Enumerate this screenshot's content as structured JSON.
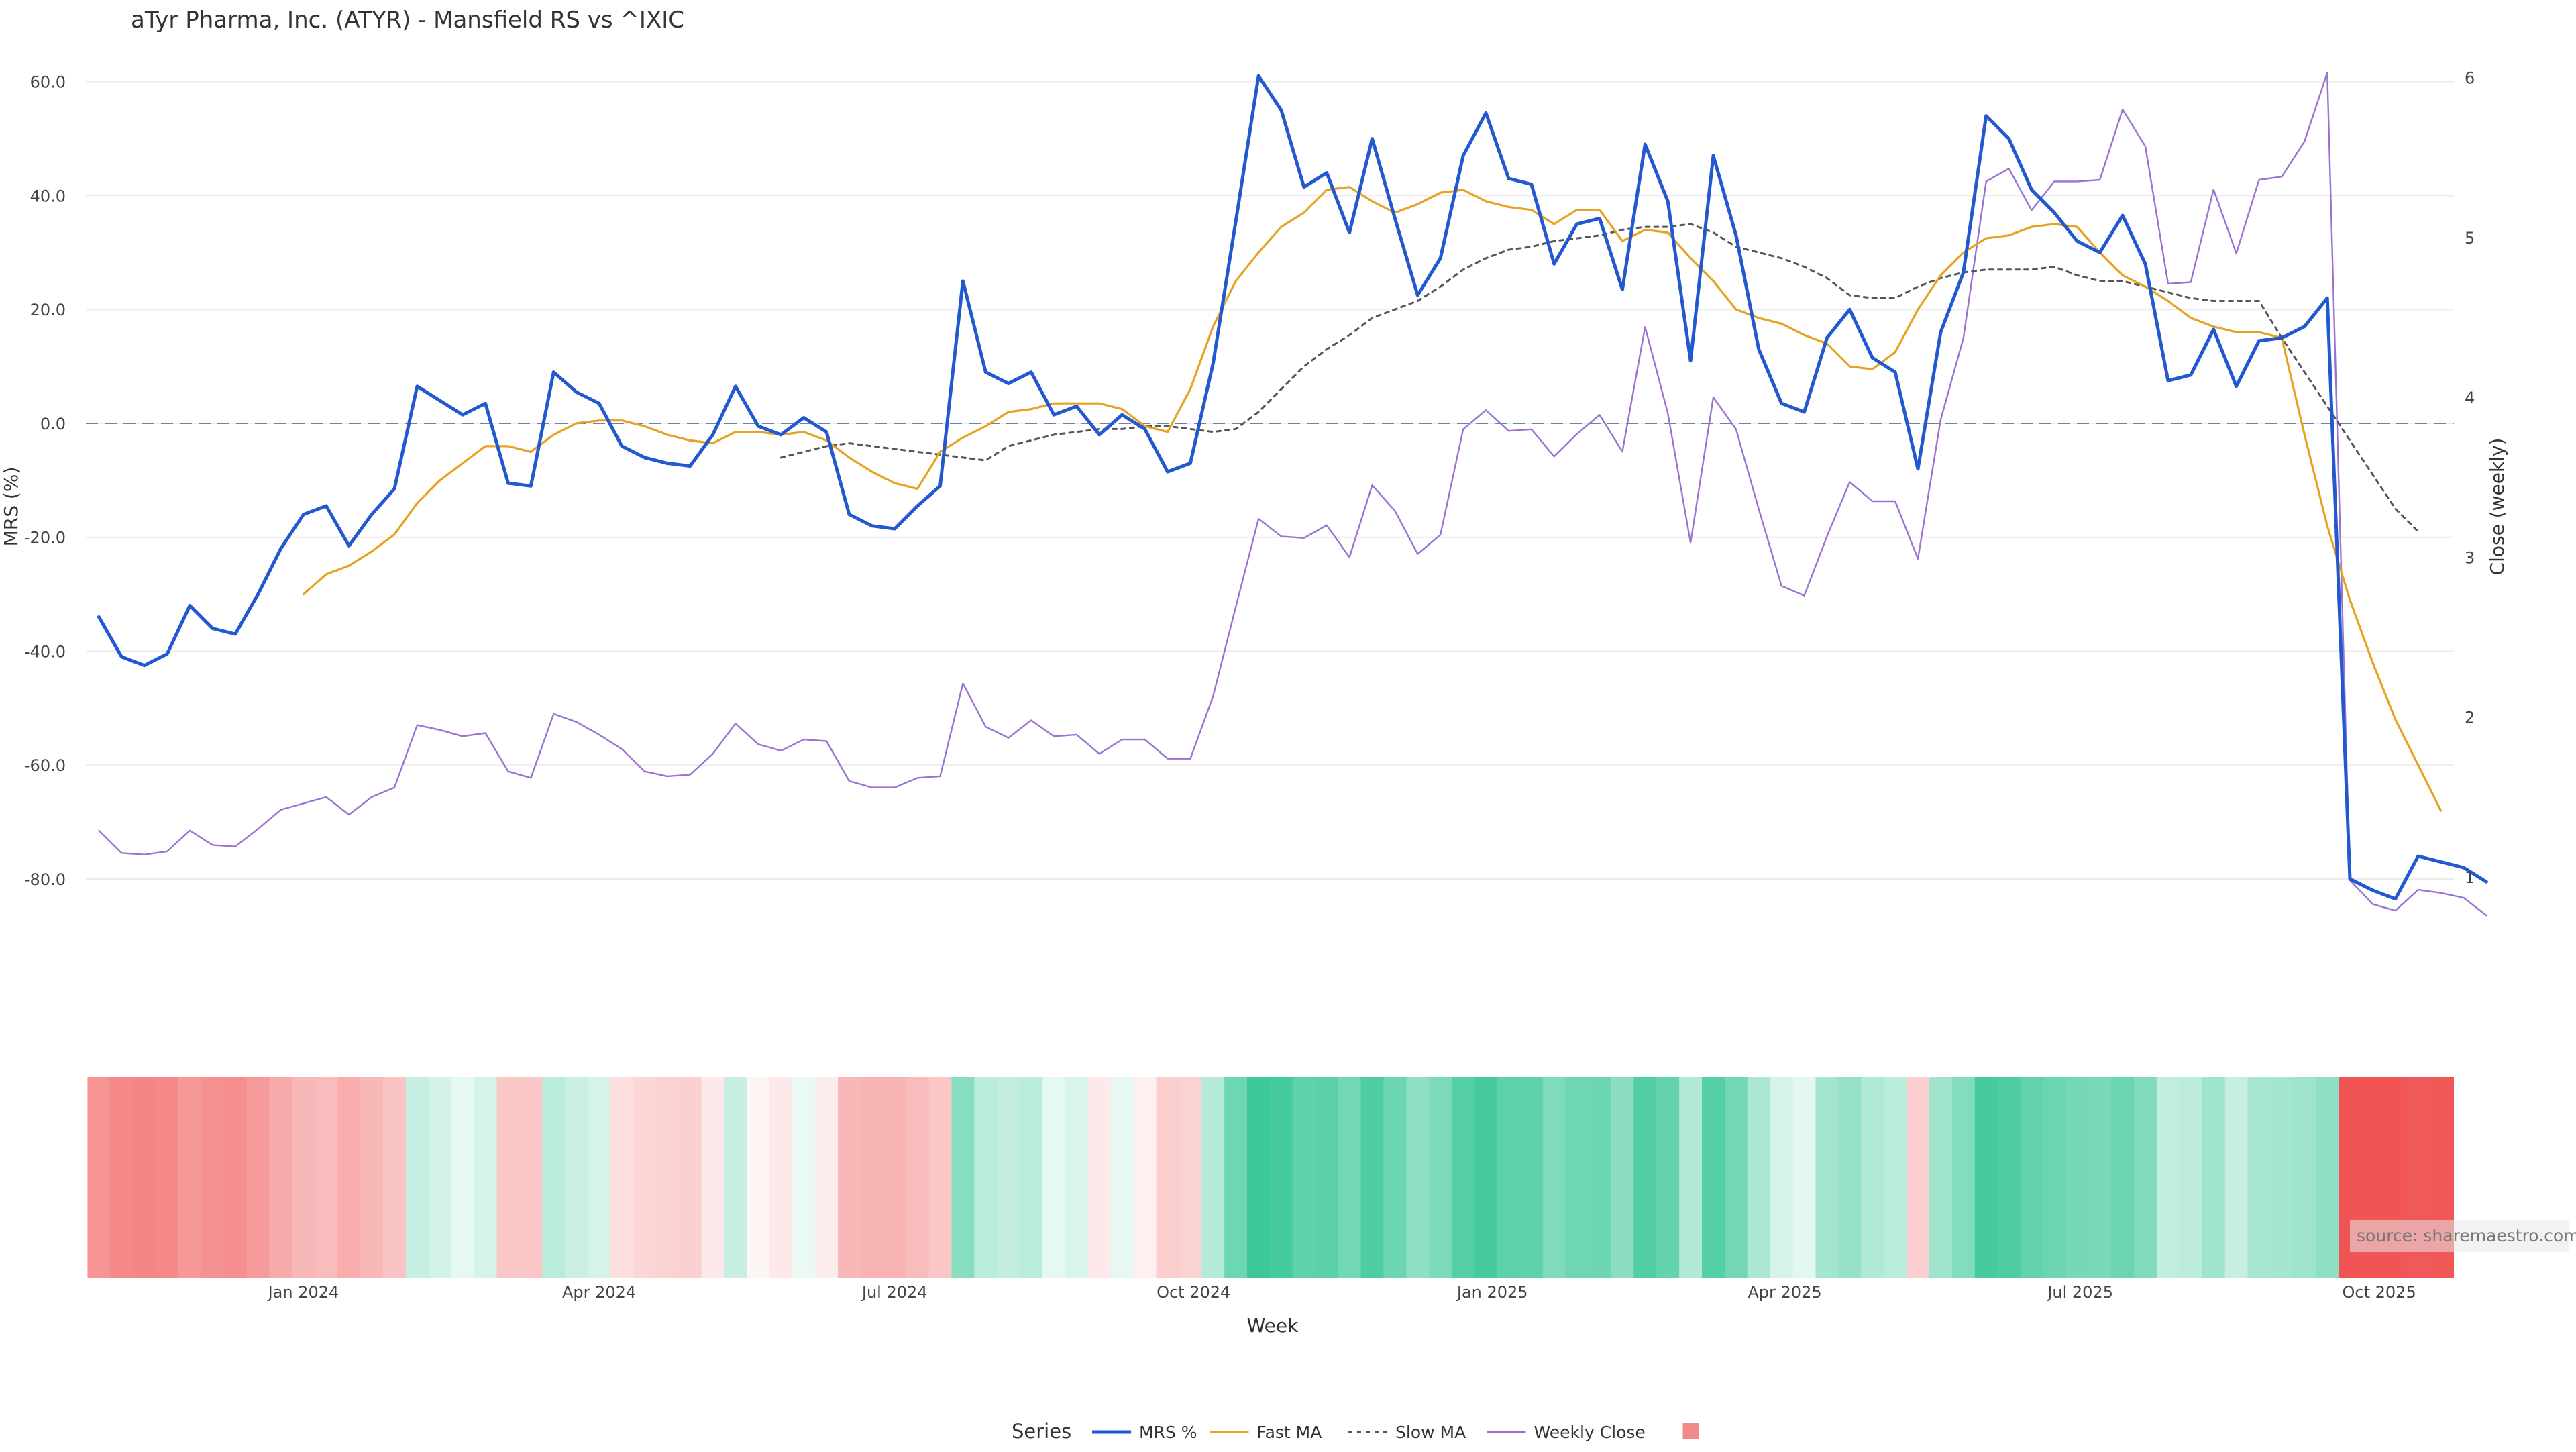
{
  "chart_data": {
    "type": "line",
    "title": "aTyr Pharma, Inc. (ATYR) - Mansfield RS vs ^IXIC",
    "xlabel": "Week",
    "ylabel_left": "MRS (%)",
    "ylabel_right": "Close (weekly)",
    "x_start": "2023-10-30",
    "x_end": "2025-10-20",
    "xlim": [
      "2023-10-26",
      "2025-10-24"
    ],
    "x_ticks": [
      {
        "date": "2024-01-01",
        "label": "Jan 2024"
      },
      {
        "date": "2024-04-01",
        "label": "Apr 2024"
      },
      {
        "date": "2024-07-01",
        "label": "Jul 2024"
      },
      {
        "date": "2024-10-01",
        "label": "Oct 2024"
      },
      {
        "date": "2025-01-01",
        "label": "Jan 2025"
      },
      {
        "date": "2025-04-01",
        "label": "Apr 2025"
      },
      {
        "date": "2025-07-01",
        "label": "Jul 2025"
      },
      {
        "date": "2025-10-01",
        "label": "Oct 2025"
      }
    ],
    "ylim_left": [
      -96.5,
      65.5
    ],
    "yticks_left": [
      "60.0",
      "40.0",
      "20.0",
      "0.0",
      "-20.0",
      "-40.0",
      "-60.0",
      "-80.0"
    ],
    "ylim_right": [
      0.4,
      6.17
    ],
    "yticks_right": [
      "6",
      "5",
      "4",
      "3",
      "2",
      "1"
    ],
    "zero_line": 0,
    "grid": "horizontal",
    "source": "source: sharemaestro.com",
    "legend": {
      "title": "Series",
      "position": "bottom-center",
      "items": [
        {
          "label": "MRS %",
          "color": "#2359d0",
          "style": "solid-thick"
        },
        {
          "label": "Fast MA",
          "color": "#e6a321",
          "style": "solid"
        },
        {
          "label": "Slow MA",
          "color": "#555555",
          "style": "dotted"
        },
        {
          "label": "Weekly Close",
          "color": "#9b72d2",
          "style": "solid-thin"
        },
        {
          "label": "",
          "color": "#f08a8a",
          "style": "swatch"
        }
      ]
    },
    "series": [
      {
        "name": "MRS %",
        "axis": "left",
        "color": "#2359d0",
        "values": [
          -34,
          -41,
          -42.5,
          -40.5,
          -32,
          -36,
          -37,
          -30,
          -22,
          -16,
          -14.5,
          -21.5,
          -16,
          -11.5,
          6.5,
          4,
          1.5,
          3.5,
          -10.5,
          -11,
          9,
          5.5,
          3.5,
          -4,
          -6,
          -7,
          -7.5,
          -2,
          6.5,
          -0.5,
          -2,
          1,
          -1.5,
          -16,
          -18,
          -18.5,
          -14.5,
          -11,
          25,
          9,
          7,
          9,
          1.5,
          3,
          -2,
          1.5,
          -1,
          -8.5,
          -7,
          10.5,
          35.5,
          61,
          55,
          41.5,
          44,
          33.5,
          50,
          36,
          22.5,
          29,
          47,
          54.5,
          43,
          42,
          28,
          35,
          36,
          23.5,
          49,
          39,
          11,
          47,
          33,
          13,
          3.5,
          2,
          15,
          20,
          11.5,
          9,
          -8,
          16,
          26.5,
          54,
          50,
          41,
          37,
          32,
          30,
          36.5,
          28,
          7.5,
          8.5,
          16.5,
          6.5,
          14.5,
          15,
          17,
          22,
          -80,
          -82,
          -83.5,
          -76,
          -77,
          -78,
          -80.5
        ]
      },
      {
        "name": "Fast MA",
        "axis": "left",
        "color": "#e6a321",
        "start_index": 9,
        "values": [
          -30,
          -26.5,
          -25,
          -22.5,
          -19.5,
          -14,
          -10,
          -7,
          -4,
          -4,
          -5,
          -2,
          0,
          0.5,
          0.5,
          -0.5,
          -2,
          -3,
          -3.5,
          -1.5,
          -1.5,
          -2,
          -1.5,
          -3,
          -6,
          -8.5,
          -10.5,
          -11.5,
          -5,
          -2.5,
          -0.5,
          2,
          2.5,
          3.5,
          3.5,
          3.5,
          2.5,
          -0.5,
          -1.5,
          6,
          17,
          25,
          30,
          34.5,
          37,
          41,
          41.5,
          39,
          37,
          38.5,
          40.5,
          41,
          39,
          38,
          37.5,
          35,
          37.5,
          37.5,
          32,
          34,
          33.5,
          29,
          25,
          20,
          18.5,
          17.5,
          15.5,
          14,
          10,
          9.5,
          12.5,
          20,
          26,
          30,
          32.5,
          33,
          34.5,
          35,
          34.5,
          30,
          26,
          24,
          21.5,
          18.5,
          17,
          16,
          16,
          15,
          -2,
          -18,
          -31,
          -42,
          -52,
          -60,
          -68
        ]
      },
      {
        "name": "Slow MA",
        "axis": "left",
        "color": "#555555",
        "start_index": 30,
        "values": [
          -6,
          -5,
          -4,
          -3.5,
          -4,
          -4.5,
          -5,
          -5.5,
          -6,
          -6.5,
          -4,
          -3,
          -2,
          -1.5,
          -1,
          -1,
          -0.5,
          -0.5,
          -1,
          -1.5,
          -1,
          2,
          6,
          10,
          13,
          15.5,
          18.5,
          20,
          21.5,
          24,
          27,
          29,
          30.5,
          31,
          32,
          32.5,
          33,
          34,
          34.5,
          34.5,
          35,
          33.5,
          31,
          30,
          29,
          27.5,
          25.5,
          22.5,
          22,
          22,
          24,
          25.5,
          26.5,
          27,
          27,
          27,
          27.5,
          26,
          25,
          25,
          24,
          23,
          22,
          21.5,
          21.5,
          21.5,
          15,
          9,
          3,
          -3,
          -9,
          -15,
          -19
        ]
      },
      {
        "name": "Weekly Close",
        "axis": "right",
        "color": "#9b72d2",
        "values": [
          1.29,
          1.15,
          1.14,
          1.16,
          1.29,
          1.2,
          1.19,
          1.3,
          1.42,
          1.46,
          1.5,
          1.39,
          1.5,
          1.56,
          1.95,
          1.92,
          1.88,
          1.9,
          1.66,
          1.62,
          2.02,
          1.97,
          1.89,
          1.8,
          1.66,
          1.63,
          1.64,
          1.77,
          1.96,
          1.83,
          1.79,
          1.86,
          1.85,
          1.6,
          1.56,
          1.56,
          1.62,
          1.63,
          2.21,
          1.94,
          1.87,
          1.98,
          1.88,
          1.89,
          1.77,
          1.86,
          1.86,
          1.74,
          1.74,
          2.13,
          2.69,
          3.24,
          3.13,
          3.12,
          3.2,
          3.0,
          3.45,
          3.29,
          3.02,
          3.14,
          3.8,
          3.92,
          3.79,
          3.8,
          3.63,
          3.77,
          3.89,
          3.66,
          4.44,
          3.9,
          3.09,
          4.0,
          3.8,
          3.3,
          2.82,
          2.76,
          3.13,
          3.47,
          3.35,
          3.35,
          2.99,
          3.86,
          4.37,
          5.35,
          5.43,
          5.17,
          5.35,
          5.35,
          5.36,
          5.8,
          5.57,
          4.71,
          4.72,
          5.3,
          4.9,
          5.36,
          5.38,
          5.6,
          6.03,
          0.98,
          0.83,
          0.79,
          0.92,
          0.9,
          0.87,
          0.76
        ]
      }
    ],
    "heatmap": {
      "description_label": "",
      "colorscale": {
        "min": -80,
        "max": 60,
        "neg_color": "#f05454",
        "mid_color": "#ffffff",
        "pos_color": "#3cc898"
      }
    }
  }
}
